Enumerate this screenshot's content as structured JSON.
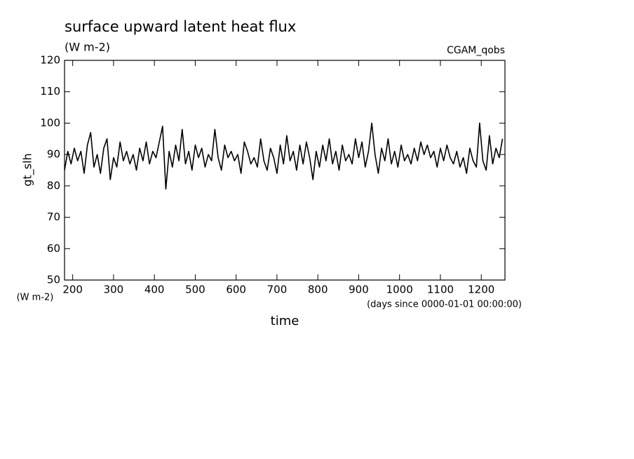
{
  "chart_data": {
    "type": "line",
    "title": "surface upward latent heat flux",
    "subtitle": "(W m-2)",
    "annotation": "CGAM_qobs",
    "ylabel": "gt_slh",
    "yunit": "(W m-2)",
    "xlabel": "time",
    "xunit": "(days since 0000-01-01 00:00:00)",
    "xlim": [
      180,
      1258
    ],
    "ylim": [
      50,
      120
    ],
    "xticks": [
      200,
      300,
      400,
      500,
      600,
      700,
      800,
      900,
      1000,
      1100,
      1200
    ],
    "yticks": [
      50,
      60,
      70,
      80,
      90,
      100,
      110,
      120
    ],
    "x": [
      180,
      188,
      196,
      204,
      212,
      220,
      228,
      236,
      244,
      252,
      260,
      268,
      276,
      284,
      292,
      300,
      308,
      316,
      324,
      332,
      340,
      348,
      356,
      364,
      372,
      380,
      388,
      396,
      404,
      412,
      420,
      428,
      436,
      444,
      452,
      460,
      468,
      476,
      484,
      492,
      500,
      508,
      516,
      524,
      532,
      540,
      548,
      556,
      564,
      572,
      580,
      588,
      596,
      604,
      612,
      620,
      628,
      636,
      644,
      652,
      660,
      668,
      676,
      684,
      692,
      700,
      708,
      716,
      724,
      732,
      740,
      748,
      756,
      764,
      772,
      780,
      788,
      796,
      804,
      812,
      820,
      828,
      836,
      844,
      852,
      860,
      868,
      876,
      884,
      892,
      900,
      908,
      916,
      924,
      932,
      940,
      948,
      956,
      964,
      972,
      980,
      988,
      996,
      1004,
      1012,
      1020,
      1028,
      1036,
      1044,
      1052,
      1060,
      1068,
      1076,
      1084,
      1092,
      1100,
      1108,
      1116,
      1124,
      1132,
      1140,
      1148,
      1156,
      1164,
      1172,
      1180,
      1188,
      1196,
      1204,
      1212,
      1220,
      1228,
      1236,
      1244,
      1252
    ],
    "series": [
      {
        "color": "#000000",
        "values": [
          85,
          91,
          87,
          92,
          88,
          91,
          84,
          93,
          97,
          86,
          90,
          84,
          92,
          95,
          82,
          89,
          86,
          94,
          88,
          91,
          87,
          90,
          85,
          92,
          88,
          94,
          87,
          91,
          89,
          94,
          99,
          79,
          91,
          86,
          93,
          88,
          98,
          87,
          91,
          85,
          93,
          89,
          92,
          86,
          90,
          88,
          98,
          89,
          85,
          93,
          89,
          91,
          88,
          90,
          84,
          94,
          91,
          87,
          89,
          86,
          95,
          88,
          85,
          92,
          89,
          84,
          93,
          87,
          96,
          88,
          91,
          85,
          93,
          87,
          94,
          89,
          82,
          91,
          86,
          93,
          88,
          95,
          87,
          91,
          85,
          93,
          88,
          90,
          87,
          95,
          89,
          94,
          86,
          91,
          100,
          90,
          84,
          92,
          88,
          95,
          87,
          91,
          86,
          93,
          88,
          90,
          87,
          92,
          88,
          94,
          90,
          93,
          89,
          91,
          86,
          92,
          88,
          93,
          89,
          87,
          91,
          86,
          89,
          84,
          92,
          88,
          86,
          100,
          88,
          85,
          96,
          87,
          92,
          89,
          95
        ]
      }
    ]
  }
}
